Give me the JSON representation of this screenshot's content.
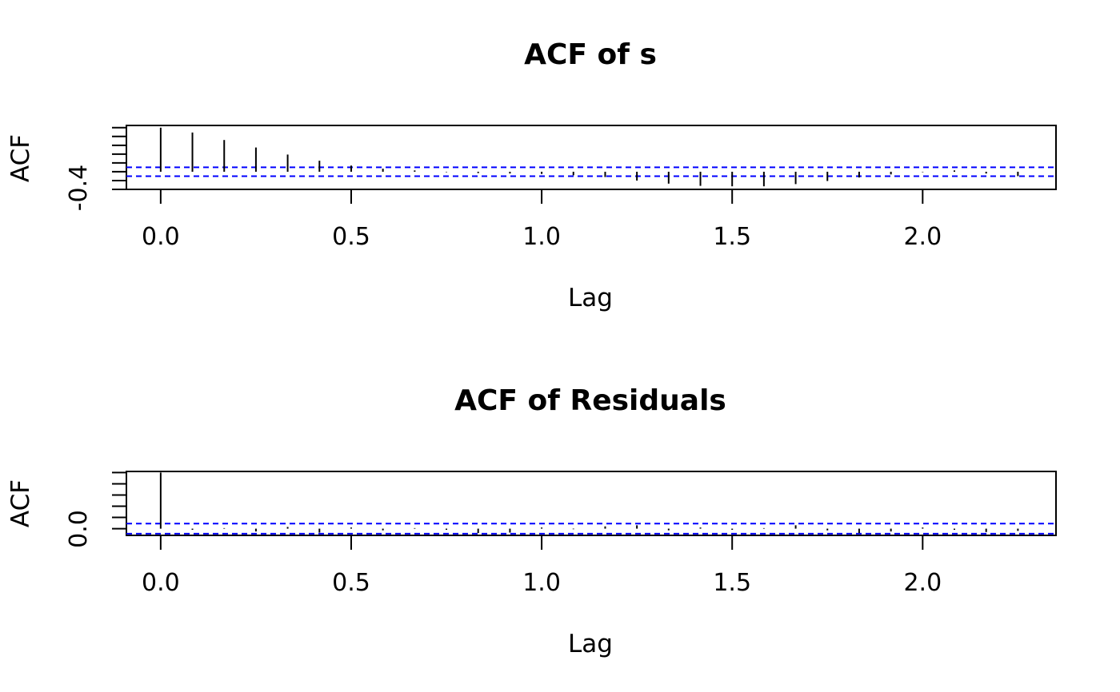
{
  "chart_data": [
    {
      "type": "bar",
      "title": "ACF of s",
      "xlabel": "Lag",
      "ylabel": "ACF",
      "x_tick_labels": [
        "0.0",
        "0.5",
        "1.0",
        "1.5",
        "2.0"
      ],
      "x_ticks": [
        0,
        0.5,
        1.0,
        1.5,
        2.0
      ],
      "y_tick_labels": [
        "-0.4"
      ],
      "y_ticks": [
        -0.4,
        -0.2,
        0.0,
        0.2,
        0.4,
        0.6,
        0.8,
        1.0
      ],
      "xlim": [
        -0.09,
        2.35
      ],
      "ylim": [
        -0.4,
        1.05
      ],
      "ci": 0.1,
      "x": [
        0,
        0.0833,
        0.1667,
        0.25,
        0.3333,
        0.4167,
        0.5,
        0.5833,
        0.6667,
        0.75,
        0.8333,
        0.9167,
        1.0,
        1.0833,
        1.1667,
        1.25,
        1.3333,
        1.4167,
        1.5,
        1.5833,
        1.6667,
        1.75,
        1.8333,
        1.9167,
        2.0,
        2.0833,
        2.1667,
        2.25
      ],
      "values": [
        1.0,
        0.89,
        0.72,
        0.55,
        0.39,
        0.25,
        0.14,
        0.07,
        0.03,
        -0.01,
        -0.03,
        -0.04,
        -0.05,
        -0.08,
        -0.12,
        -0.2,
        -0.27,
        -0.32,
        -0.33,
        -0.33,
        -0.28,
        -0.21,
        -0.13,
        -0.06,
        -0.01,
        0.03,
        -0.04,
        -0.1
      ],
      "grid": false
    },
    {
      "type": "bar",
      "title": "ACF of Residuals",
      "xlabel": "Lag",
      "ylabel": "ACF",
      "x_tick_labels": [
        "0.0",
        "0.5",
        "1.0",
        "1.5",
        "2.0"
      ],
      "x_ticks": [
        0,
        0.5,
        1.0,
        1.5,
        2.0
      ],
      "y_tick_labels": [
        "0.0"
      ],
      "y_ticks": [
        0.0,
        0.2,
        0.4,
        0.6,
        0.8,
        1.0
      ],
      "xlim": [
        -0.09,
        2.35
      ],
      "ylim": [
        -0.12,
        1.02
      ],
      "ci": 0.09,
      "x": [
        0,
        0.0833,
        0.1667,
        0.25,
        0.3333,
        0.4167,
        0.5,
        0.5833,
        0.6667,
        0.75,
        0.8333,
        0.9167,
        1.0,
        1.0833,
        1.1667,
        1.25,
        1.3333,
        1.4167,
        1.5,
        1.5833,
        1.6667,
        1.75,
        1.8333,
        1.9167,
        2.0,
        2.0833,
        2.1667,
        2.25
      ],
      "values": [
        1.0,
        -0.02,
        0.01,
        -0.05,
        0.03,
        -0.07,
        0.02,
        -0.03,
        0.01,
        -0.02,
        -0.08,
        -0.07,
        0.02,
        -0.01,
        0.04,
        0.06,
        -0.03,
        0.02,
        -0.02,
        0.01,
        0.06,
        -0.03,
        -0.08,
        -0.05,
        0.02,
        -0.02,
        -0.06,
        -0.04
      ],
      "grid": false
    }
  ]
}
